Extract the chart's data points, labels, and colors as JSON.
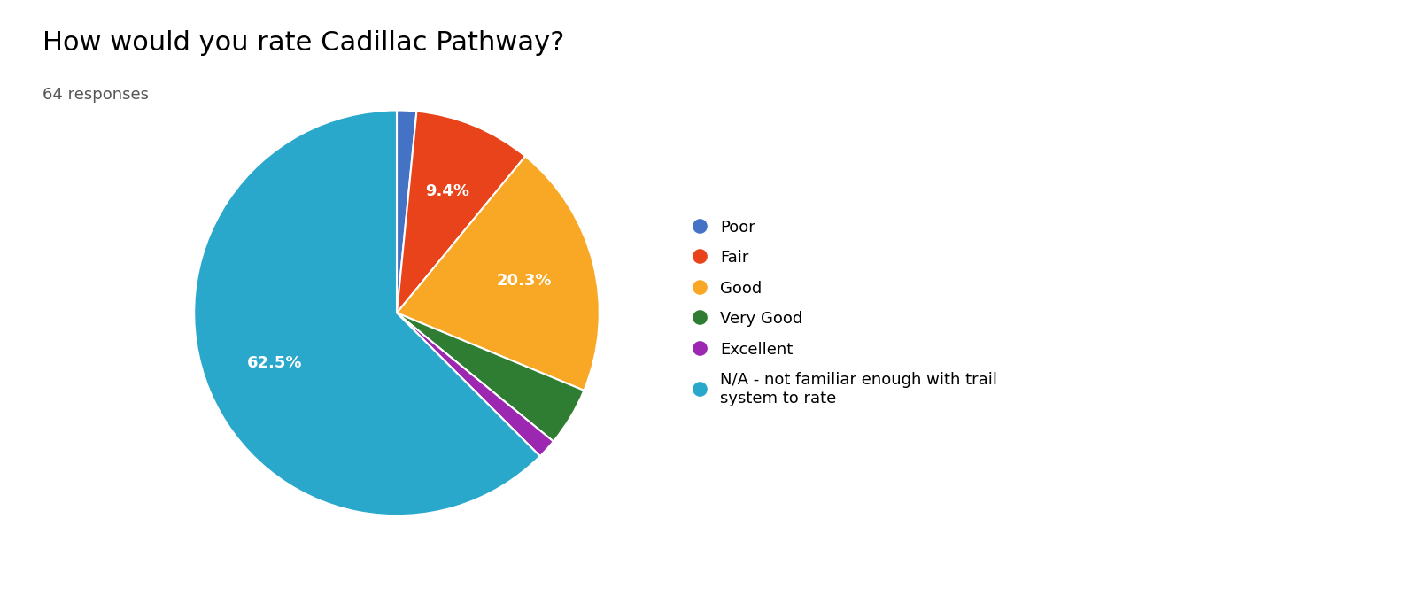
{
  "title": "How would you rate Cadillac Pathway?",
  "subtitle": "64 responses",
  "labels": [
    "Poor",
    "Fair",
    "Good",
    "Very Good",
    "Excellent",
    "N/A - not familiar enough with trail\nsystem to rate"
  ],
  "values": [
    1.5625,
    9.375,
    20.3125,
    4.6875,
    1.5625,
    62.5
  ],
  "colors": [
    "#4472C4",
    "#E8431A",
    "#F9A825",
    "#2E7D32",
    "#9C27B0",
    "#29A8CC"
  ],
  "legend_labels": [
    "Poor",
    "Fair",
    "Good",
    "Very Good",
    "Excellent",
    "N/A - not familiar enough with trail\nsystem to rate"
  ],
  "title_fontsize": 22,
  "subtitle_fontsize": 13,
  "background_color": "#ffffff",
  "text_color": "#000000",
  "autopct_threshold": 5.0
}
